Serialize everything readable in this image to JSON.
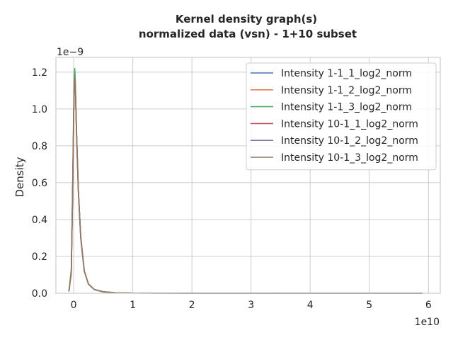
{
  "chart_data": {
    "type": "line",
    "title": "Kernel density graph(s)",
    "subtitle": "normalized data (vsn) - 1+10 subset",
    "xlabel": "",
    "ylabel": "Density",
    "x_offset_label": "1e10",
    "y_offset_label": "1e−9",
    "x_scale": 10000000000,
    "y_scale": 1e-09,
    "xlim": [
      -0.3,
      6.2
    ],
    "ylim": [
      0,
      1.28
    ],
    "xticks": [
      0,
      1,
      2,
      3,
      4,
      5,
      6
    ],
    "yticks": [
      0.0,
      0.2,
      0.4,
      0.6,
      0.8,
      1.0,
      1.2
    ],
    "xtick_labels": [
      "0",
      "1",
      "2",
      "3",
      "4",
      "5",
      "6"
    ],
    "ytick_labels": [
      "0.0",
      "0.2",
      "0.4",
      "0.6",
      "0.8",
      "1.0",
      "1.2"
    ],
    "grid": true,
    "legend_position": "top-right",
    "series": [
      {
        "name": "Intensity 1-1_1_log2_norm",
        "color": "#4c72b0",
        "x": [
          -0.08,
          -0.04,
          -0.02,
          0.0,
          0.01,
          0.02,
          0.03,
          0.05,
          0.08,
          0.12,
          0.18,
          0.25,
          0.35,
          0.5,
          0.7,
          1.0,
          2.0,
          3.0,
          4.0,
          5.0,
          5.9
        ],
        "y": [
          0.01,
          0.12,
          0.5,
          0.95,
          1.15,
          1.18,
          1.1,
          0.85,
          0.55,
          0.3,
          0.12,
          0.05,
          0.02,
          0.008,
          0.003,
          0.001,
          0.0003,
          0.0001,
          0.0,
          0.0,
          0.0
        ]
      },
      {
        "name": "Intensity 1-1_2_log2_norm",
        "color": "#dd8452",
        "x": [
          -0.08,
          -0.04,
          -0.02,
          0.0,
          0.01,
          0.02,
          0.03,
          0.05,
          0.08,
          0.12,
          0.18,
          0.25,
          0.35,
          0.5,
          0.7,
          1.0,
          2.0,
          3.0,
          4.0,
          5.0,
          5.9
        ],
        "y": [
          0.01,
          0.12,
          0.5,
          0.96,
          1.16,
          1.19,
          1.11,
          0.86,
          0.55,
          0.3,
          0.12,
          0.05,
          0.02,
          0.008,
          0.003,
          0.001,
          0.0003,
          0.0001,
          0.0,
          0.0,
          0.0
        ]
      },
      {
        "name": "Intensity 1-1_3_log2_norm",
        "color": "#55a868",
        "x": [
          -0.08,
          -0.04,
          -0.02,
          0.0,
          0.01,
          0.02,
          0.03,
          0.05,
          0.08,
          0.12,
          0.18,
          0.25,
          0.35,
          0.5,
          0.7,
          1.0,
          2.0,
          3.0,
          4.0,
          5.0,
          5.9
        ],
        "y": [
          0.01,
          0.13,
          0.52,
          1.0,
          1.19,
          1.22,
          1.13,
          0.87,
          0.56,
          0.3,
          0.12,
          0.05,
          0.02,
          0.008,
          0.003,
          0.001,
          0.0003,
          0.0001,
          0.0,
          0.0,
          0.0
        ]
      },
      {
        "name": "Intensity 10-1_1_log2_norm",
        "color": "#c44e52",
        "x": [
          -0.08,
          -0.04,
          -0.02,
          0.0,
          0.01,
          0.02,
          0.03,
          0.05,
          0.08,
          0.12,
          0.18,
          0.25,
          0.35,
          0.5,
          0.7,
          1.0,
          2.0,
          3.0,
          4.0,
          5.0,
          5.9
        ],
        "y": [
          0.01,
          0.11,
          0.48,
          0.93,
          1.13,
          1.16,
          1.09,
          0.85,
          0.55,
          0.3,
          0.12,
          0.05,
          0.02,
          0.008,
          0.003,
          0.001,
          0.0003,
          0.0001,
          0.0,
          0.0,
          0.0
        ]
      },
      {
        "name": "Intensity 10-1_2_log2_norm",
        "color": "#8172b3",
        "x": [
          -0.08,
          -0.04,
          -0.02,
          0.0,
          0.01,
          0.02,
          0.03,
          0.05,
          0.08,
          0.12,
          0.18,
          0.25,
          0.35,
          0.5,
          0.7,
          1.0,
          2.0,
          3.0,
          4.0,
          5.0,
          5.9
        ],
        "y": [
          0.01,
          0.11,
          0.49,
          0.94,
          1.14,
          1.17,
          1.1,
          0.85,
          0.55,
          0.3,
          0.12,
          0.05,
          0.02,
          0.008,
          0.003,
          0.001,
          0.0003,
          0.0001,
          0.0,
          0.0,
          0.0
        ]
      },
      {
        "name": "Intensity 10-1_3_log2_norm",
        "color": "#937860",
        "x": [
          -0.08,
          -0.04,
          -0.02,
          0.0,
          0.01,
          0.02,
          0.03,
          0.05,
          0.08,
          0.12,
          0.18,
          0.25,
          0.35,
          0.5,
          0.7,
          1.0,
          2.0,
          3.0,
          4.0,
          5.0,
          5.9
        ],
        "y": [
          0.01,
          0.12,
          0.5,
          0.95,
          1.15,
          1.17,
          1.1,
          0.86,
          0.56,
          0.31,
          0.12,
          0.05,
          0.02,
          0.008,
          0.003,
          0.001,
          0.0003,
          0.0001,
          0.0,
          0.0,
          0.0
        ]
      }
    ]
  }
}
